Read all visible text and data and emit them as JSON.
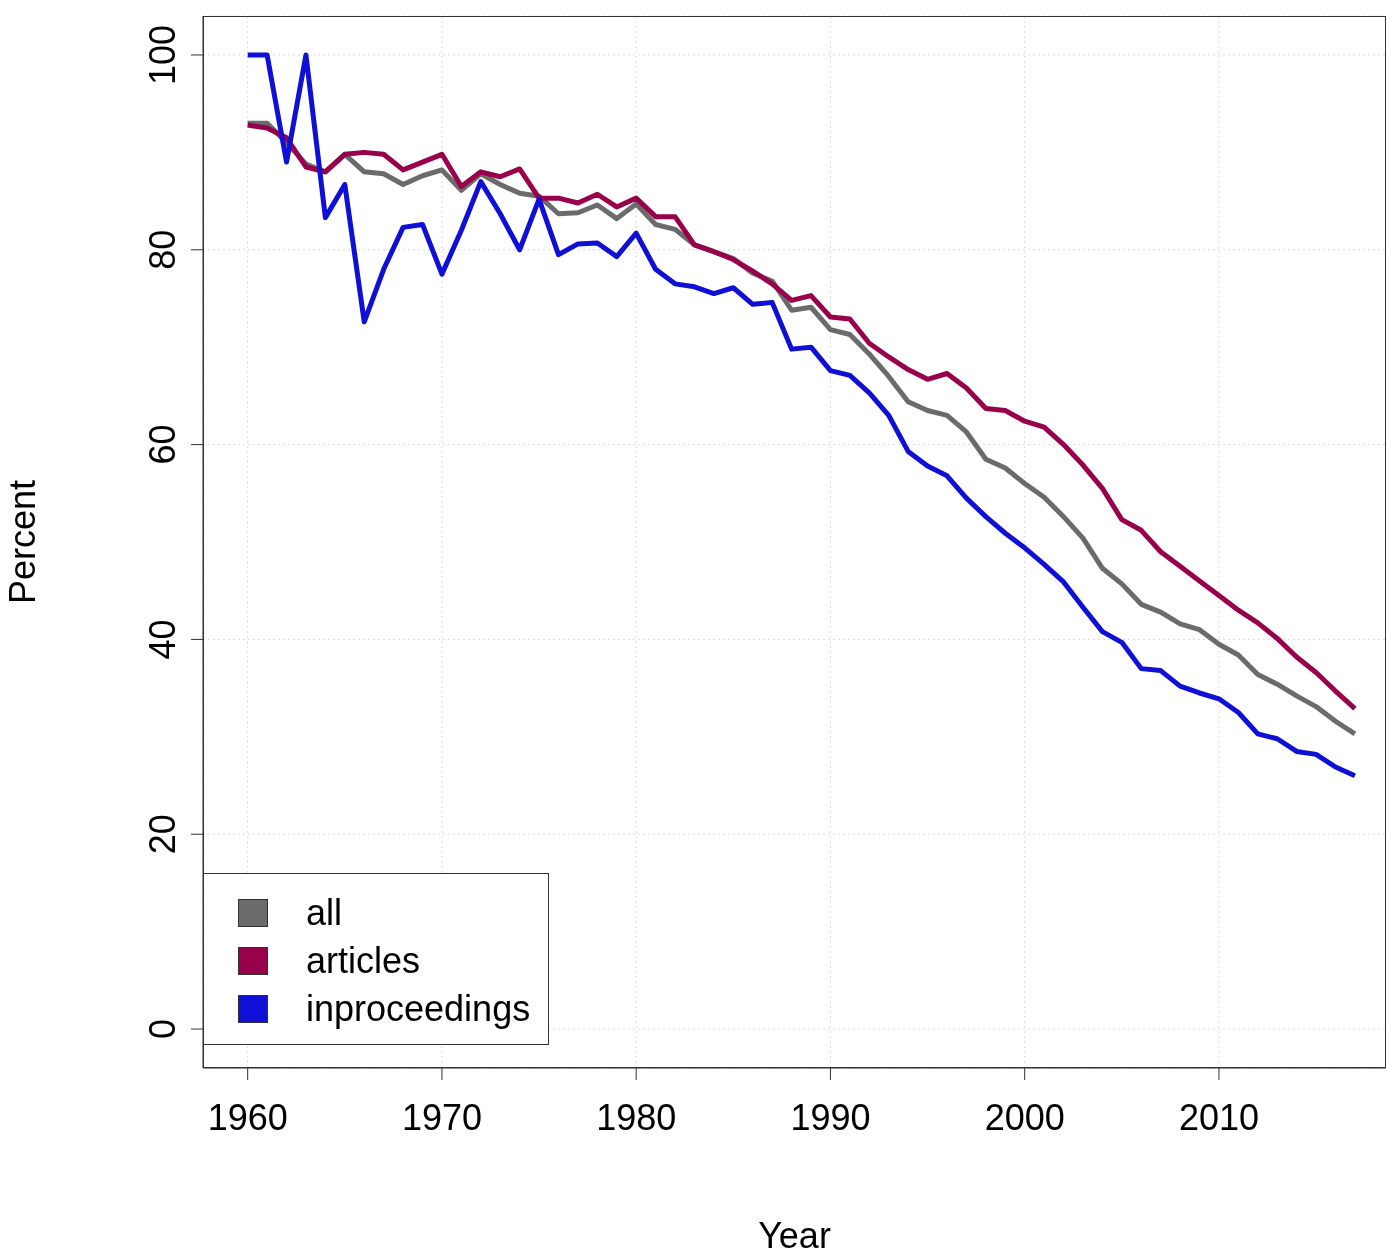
{
  "chart_data": {
    "type": "line",
    "xlabel": "Year",
    "ylabel": "Percent",
    "x": [
      1960,
      1961,
      1962,
      1963,
      1964,
      1965,
      1966,
      1967,
      1968,
      1969,
      1970,
      1971,
      1972,
      1973,
      1974,
      1975,
      1976,
      1977,
      1978,
      1979,
      1980,
      1981,
      1982,
      1983,
      1984,
      1985,
      1986,
      1987,
      1988,
      1989,
      1990,
      1991,
      1992,
      1993,
      1994,
      1995,
      1996,
      1997,
      1998,
      1999,
      2000,
      2001,
      2002,
      2003,
      2004,
      2005,
      2006,
      2007,
      2008,
      2009,
      2010,
      2011,
      2012,
      2013,
      2014,
      2015,
      2016,
      2017
    ],
    "series": [
      {
        "name": "all",
        "color": "#6b6b6b",
        "values": [
          93,
          93,
          91,
          88.8,
          88,
          89.8,
          88,
          87.8,
          86.7,
          87.6,
          88.2,
          86.1,
          87.8,
          86.7,
          85.8,
          85.5,
          83.7,
          83.8,
          84.6,
          83.2,
          84.7,
          82.6,
          82.1,
          80.5,
          79.8,
          79.1,
          77.6,
          76.8,
          73.8,
          74.1,
          71.8,
          71.3,
          69.3,
          67,
          64.4,
          63.5,
          63,
          61.3,
          58.5,
          57.6,
          56,
          54.6,
          52.6,
          50.4,
          47.3,
          45.7,
          43.6,
          42.8,
          41.6,
          41,
          39.5,
          38.4,
          36.4,
          35.4,
          34.2,
          33.1,
          31.6,
          30.3
        ]
      },
      {
        "name": "articles",
        "color": "#99004c",
        "values": [
          92.8,
          92.5,
          91.5,
          88.5,
          88,
          89.8,
          90,
          89.8,
          88.2,
          89,
          89.8,
          86.5,
          88,
          87.5,
          88.3,
          85.3,
          85.3,
          84.8,
          85.7,
          84.4,
          85.3,
          83.4,
          83.4,
          80.5,
          79.8,
          79,
          77.8,
          76.5,
          74.8,
          75.3,
          73.1,
          72.9,
          70.4,
          69,
          67.7,
          66.7,
          67.3,
          65.8,
          63.7,
          63.5,
          62.4,
          61.8,
          60,
          57.9,
          55.5,
          52.3,
          51.2,
          49,
          47.5,
          46,
          44.5,
          43,
          41.7,
          40.1,
          38.2,
          36.6,
          34.7,
          32.9
        ]
      },
      {
        "name": "inproceedings",
        "color": "#0f0fd6",
        "values": [
          100,
          100,
          89,
          100,
          83.3,
          86.7,
          72.6,
          78,
          82.3,
          82.6,
          77.5,
          82,
          87,
          83.7,
          80,
          85.2,
          79.5,
          80.6,
          80.7,
          79.3,
          81.7,
          78,
          76.5,
          76.2,
          75.5,
          76.1,
          74.4,
          74.6,
          69.8,
          70,
          67.6,
          67.1,
          65.3,
          63,
          59.3,
          57.8,
          56.8,
          54.5,
          52.6,
          50.9,
          49.4,
          47.7,
          45.9,
          43.3,
          40.8,
          39.7,
          37,
          36.8,
          35.2,
          34.5,
          33.9,
          32.5,
          30.3,
          29.8,
          28.5,
          28.2,
          26.9,
          26
        ]
      }
    ],
    "xlim": [
      1957.7,
      2018.6
    ],
    "xticks": [
      1960,
      1970,
      1980,
      1990,
      2000,
      2010
    ],
    "ylim": [
      -4,
      104
    ],
    "yticks": [
      0,
      20,
      40,
      60,
      80,
      100
    ],
    "grid": true,
    "legend": "bottom left",
    "marker": "none",
    "line_style": "solid"
  }
}
